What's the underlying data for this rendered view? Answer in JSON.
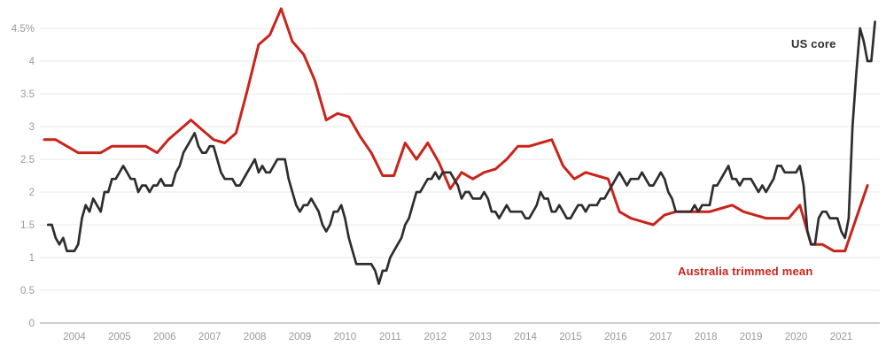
{
  "page": {
    "background_color": "#ffffff"
  },
  "chart_data": {
    "type": "line",
    "title": "",
    "xlabel": "",
    "ylabel": "",
    "grid": true,
    "legend_position": "inline-annotations",
    "style": {
      "grid_color": "#e8e8e8",
      "axis_color": "#b0b0b0",
      "tick_color": "#9a9a9a"
    },
    "y_axis": {
      "range": [
        0,
        4.85
      ],
      "tick_values": [
        0,
        0.5,
        1,
        1.5,
        2,
        2.5,
        3,
        3.5,
        4,
        4.5
      ],
      "tick_labels": [
        "0",
        "0.5",
        "1",
        "1.5",
        "2",
        "2.5",
        "3",
        "3.5",
        "4",
        "4.5%"
      ]
    },
    "x_axis": {
      "years": [
        2004,
        2005,
        2006,
        2007,
        2008,
        2009,
        2010,
        2011,
        2012,
        2013,
        2014,
        2015,
        2016,
        2017,
        2018,
        2019,
        2020,
        2021
      ]
    },
    "series": [
      {
        "id": "australia-trimmed-mean",
        "name": "Australia trimmed mean",
        "color": "#c9241c",
        "frequency": "quarterly",
        "start": "Q2 2003",
        "end": "Q3 2021",
        "values": [
          2.8,
          2.8,
          2.7,
          2.6,
          2.6,
          2.6,
          2.7,
          2.7,
          2.7,
          2.7,
          2.6,
          2.8,
          2.95,
          3.1,
          2.95,
          2.8,
          2.75,
          2.9,
          3.55,
          4.25,
          4.4,
          4.8,
          4.3,
          4.1,
          3.7,
          3.1,
          3.2,
          3.15,
          2.85,
          2.6,
          2.25,
          2.25,
          2.75,
          2.5,
          2.75,
          2.45,
          2.05,
          2.3,
          2.2,
          2.3,
          2.35,
          2.5,
          2.7,
          2.7,
          2.75,
          2.8,
          2.4,
          2.2,
          2.3,
          2.25,
          2.2,
          1.7,
          1.6,
          1.55,
          1.5,
          1.65,
          1.7,
          1.7,
          1.7,
          1.7,
          1.75,
          1.8,
          1.7,
          1.65,
          1.6,
          1.6,
          1.6,
          1.8,
          1.2,
          1.2,
          1.1,
          1.1,
          1.6,
          2.1
        ]
      },
      {
        "id": "us-core",
        "name": "US core",
        "color": "#2e2e2e",
        "frequency": "monthly",
        "start": "Jun 2003",
        "end": "Oct 2021",
        "values": [
          1.5,
          1.5,
          1.3,
          1.2,
          1.3,
          1.1,
          1.1,
          1.1,
          1.2,
          1.6,
          1.8,
          1.7,
          1.9,
          1.8,
          1.7,
          2.0,
          2.0,
          2.2,
          2.2,
          2.3,
          2.4,
          2.3,
          2.2,
          2.2,
          2.0,
          2.1,
          2.1,
          2.0,
          2.1,
          2.1,
          2.2,
          2.1,
          2.1,
          2.1,
          2.3,
          2.4,
          2.6,
          2.7,
          2.8,
          2.9,
          2.7,
          2.6,
          2.6,
          2.7,
          2.7,
          2.5,
          2.3,
          2.2,
          2.2,
          2.2,
          2.1,
          2.1,
          2.2,
          2.3,
          2.4,
          2.5,
          2.3,
          2.4,
          2.3,
          2.3,
          2.4,
          2.5,
          2.5,
          2.5,
          2.2,
          2.0,
          1.8,
          1.7,
          1.8,
          1.8,
          1.9,
          1.8,
          1.7,
          1.5,
          1.4,
          1.5,
          1.7,
          1.7,
          1.8,
          1.6,
          1.3,
          1.1,
          0.9,
          0.9,
          0.9,
          0.9,
          0.9,
          0.8,
          0.6,
          0.8,
          0.8,
          1.0,
          1.1,
          1.2,
          1.3,
          1.5,
          1.6,
          1.8,
          2.0,
          2.0,
          2.1,
          2.2,
          2.2,
          2.3,
          2.2,
          2.3,
          2.3,
          2.3,
          2.2,
          2.1,
          1.9,
          2.0,
          2.0,
          1.9,
          1.9,
          1.9,
          2.0,
          1.9,
          1.7,
          1.7,
          1.6,
          1.7,
          1.8,
          1.7,
          1.7,
          1.7,
          1.7,
          1.6,
          1.6,
          1.7,
          1.8,
          2.0,
          1.9,
          1.9,
          1.7,
          1.7,
          1.8,
          1.7,
          1.6,
          1.6,
          1.7,
          1.8,
          1.8,
          1.7,
          1.8,
          1.8,
          1.8,
          1.9,
          1.9,
          2.0,
          2.1,
          2.2,
          2.3,
          2.2,
          2.1,
          2.2,
          2.2,
          2.2,
          2.3,
          2.2,
          2.1,
          2.1,
          2.2,
          2.3,
          2.2,
          2.0,
          1.9,
          1.7,
          1.7,
          1.7,
          1.7,
          1.7,
          1.8,
          1.7,
          1.8,
          1.8,
          1.8,
          2.1,
          2.1,
          2.2,
          2.3,
          2.4,
          2.2,
          2.2,
          2.1,
          2.2,
          2.2,
          2.2,
          2.1,
          2.0,
          2.1,
          2.0,
          2.1,
          2.2,
          2.4,
          2.4,
          2.3,
          2.3,
          2.3,
          2.3,
          2.4,
          2.1,
          1.4,
          1.2,
          1.2,
          1.6,
          1.7,
          1.7,
          1.6,
          1.6,
          1.6,
          1.4,
          1.3,
          1.6,
          3.0,
          3.8,
          4.5,
          4.3,
          4.0,
          4.0,
          4.6
        ]
      }
    ],
    "annotations": [
      {
        "id": "us-core-label",
        "text": "US core",
        "color": "#2e2e2e"
      },
      {
        "id": "australia-label",
        "text": "Australia trimmed mean",
        "color": "#c9241c"
      }
    ]
  }
}
